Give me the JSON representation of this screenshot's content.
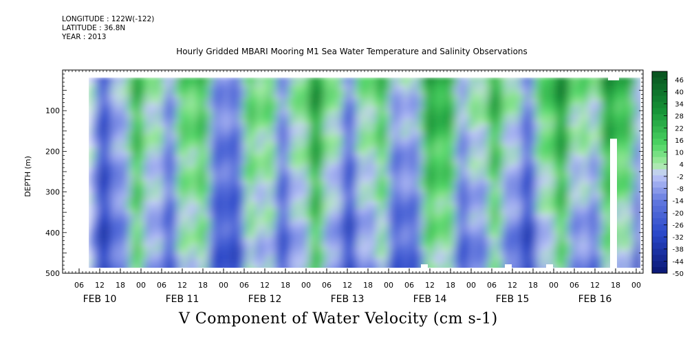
{
  "header": {
    "longitude": "LONGITUDE : 122W(-122)",
    "latitude": "LATITUDE : 36.8N",
    "year": "YEAR : 2013"
  },
  "chart_data": {
    "type": "heatmap",
    "title": "Hourly Gridded MBARI Mooring M1 Sea Water Temperature and Salinity Observations",
    "xlabel": "V Component of Water Velocity (cm s-1)",
    "ylabel": "DEPTH (m)",
    "y_ticks": [
      100,
      200,
      300,
      400,
      500
    ],
    "ylim": [
      500,
      0
    ],
    "data_depth_range": [
      20,
      485
    ],
    "x_hour_ticks": [
      "06",
      "12",
      "18",
      "00",
      "06",
      "12",
      "18",
      "00",
      "06",
      "12",
      "18",
      "00",
      "06",
      "12",
      "18",
      "00",
      "06",
      "12",
      "18",
      "00",
      "06",
      "12",
      "18",
      "00",
      "06",
      "12",
      "18",
      "00"
    ],
    "x_day_labels": [
      "FEB 10",
      "FEB 11",
      "FEB 12",
      "FEB 13",
      "FEB 14",
      "FEB 15",
      "FEB 16"
    ],
    "colorbar": {
      "labels": [
        "46",
        "40",
        "34",
        "28",
        "22",
        "16",
        "10",
        "4",
        "-2",
        "-8",
        "-14",
        "-20",
        "-26",
        "-32",
        "-38",
        "-44",
        "-50"
      ],
      "range": [
        -50,
        50
      ],
      "step": 3
    },
    "colors": {
      "strong_negative": "#0a1a7a",
      "negative": "#5d6fd6",
      "weak_negative": "#a9b4f0",
      "near_zero": "#c3ccf5",
      "weak_positive": "#9ee89c",
      "positive": "#3fcf5a",
      "strong_positive": "#0b5e22"
    }
  }
}
